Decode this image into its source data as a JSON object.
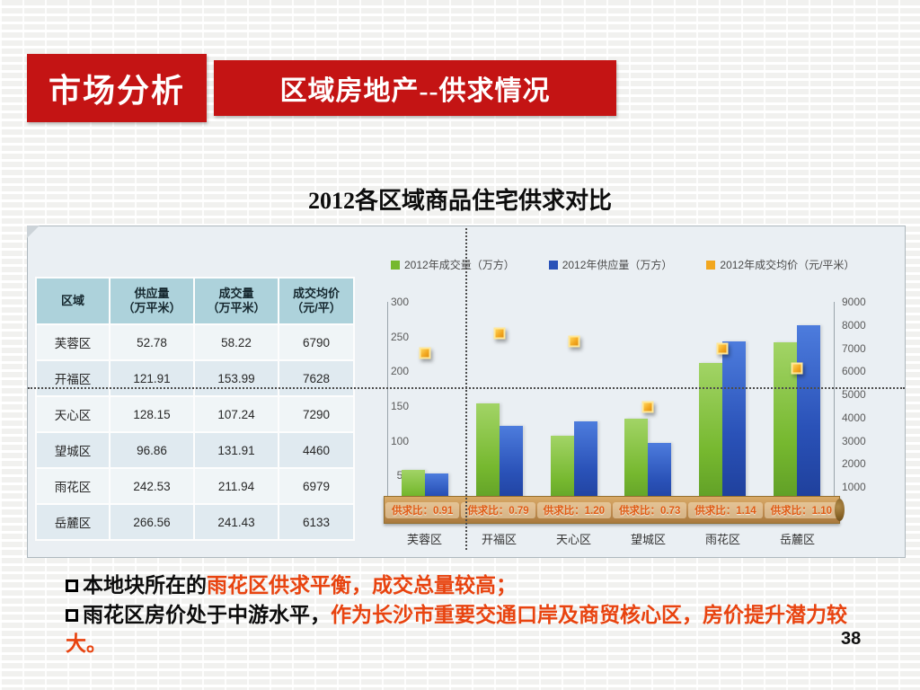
{
  "header": {
    "tab_label": "市场分析",
    "title": "区域房地产--供求情况"
  },
  "section_title": "2012各区域商品住宅供求对比",
  "table": {
    "columns": [
      "区域",
      "供应量\n（万平米）",
      "成交量\n（万平米）",
      "成交均价\n（元/平）"
    ],
    "rows": [
      [
        "芙蓉区",
        "52.78",
        "58.22",
        "6790"
      ],
      [
        "开福区",
        "121.91",
        "153.99",
        "7628"
      ],
      [
        "天心区",
        "128.15",
        "107.24",
        "7290"
      ],
      [
        "望城区",
        "96.86",
        "131.91",
        "4460"
      ],
      [
        "雨花区",
        "242.53",
        "211.94",
        "6979"
      ],
      [
        "岳麓区",
        "266.56",
        "241.43",
        "6133"
      ]
    ]
  },
  "chart_data": {
    "type": "bar",
    "title": "",
    "categories": [
      "芙蓉区",
      "开福区",
      "天心区",
      "望城区",
      "雨花区",
      "岳麓区"
    ],
    "series": [
      {
        "name": "2012年成交量（万方）",
        "kind": "bar",
        "color": "#76b82f",
        "axis": "left",
        "values": [
          58.22,
          153.99,
          107.24,
          131.91,
          211.94,
          241.43
        ]
      },
      {
        "name": "2012年供应量（万方）",
        "kind": "bar",
        "color": "#2a52b8",
        "axis": "left",
        "values": [
          52.78,
          121.91,
          128.15,
          96.86,
          242.53,
          266.56
        ]
      },
      {
        "name": "2012年成交均价（元/平米）",
        "kind": "point",
        "color": "#f2a71f",
        "axis": "right",
        "values": [
          6790,
          7628,
          7290,
          4460,
          6979,
          6133
        ]
      }
    ],
    "left_axis": {
      "min": 0,
      "max": 300,
      "step": 50
    },
    "right_axis": {
      "min": 0,
      "max": 9000,
      "step": 1000
    },
    "ratio_labels": [
      "供求比：0.91",
      "供求比：0.79",
      "供求比：1.20",
      "供求比：0.73",
      "供求比：1.14",
      "供求比：1.10"
    ],
    "legend_position": "top",
    "grid": false
  },
  "notes": [
    {
      "prefix": "本地块所在的",
      "highlight": "雨花区供求平衡，成交总量较高；"
    },
    {
      "prefix": "雨花区房价处于中游水平，",
      "highlight": "作为长沙市重要交通口岸及商贸核心区，房价提升潜力较大。"
    }
  ],
  "page_number": "38",
  "colors": {
    "accent_red": "#c41414",
    "highlight_text": "#e8430f",
    "bar_green": "#76b82f",
    "bar_blue": "#2a52b8",
    "marker_yellow": "#f2a71f",
    "ribbon_tan": "#c49155"
  }
}
